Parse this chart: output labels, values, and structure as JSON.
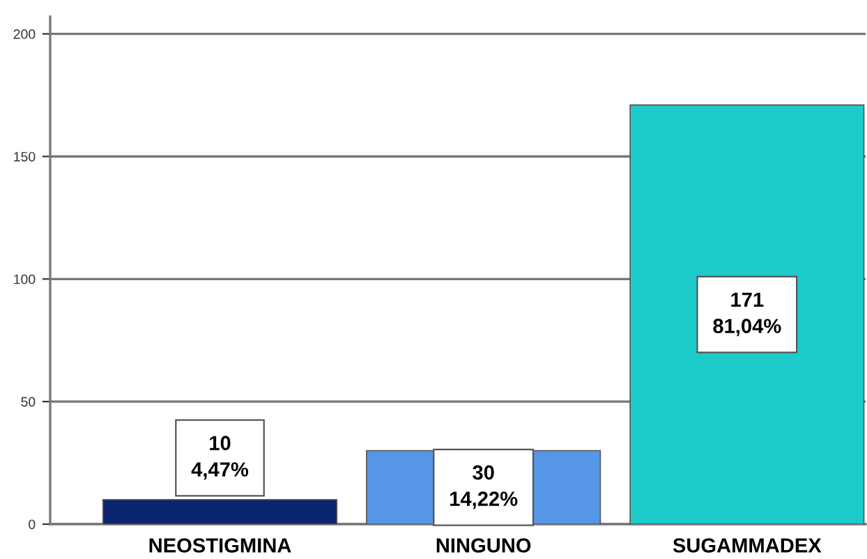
{
  "chart_data": {
    "type": "bar",
    "categories": [
      "NEOSTIGMINA",
      "NINGUNO",
      "SUGAMMADEX"
    ],
    "values": [
      10,
      30,
      171
    ],
    "colors": [
      "#0a2470",
      "#5596e6",
      "#1ecbcb"
    ],
    "value_labels": [
      "10\n4,47%",
      "30\n14,22%",
      "171\n81,04%"
    ],
    "ylim": [
      0,
      207
    ],
    "yticks": [
      0,
      50,
      100,
      150,
      200
    ],
    "grid": "y",
    "legend": false
  }
}
